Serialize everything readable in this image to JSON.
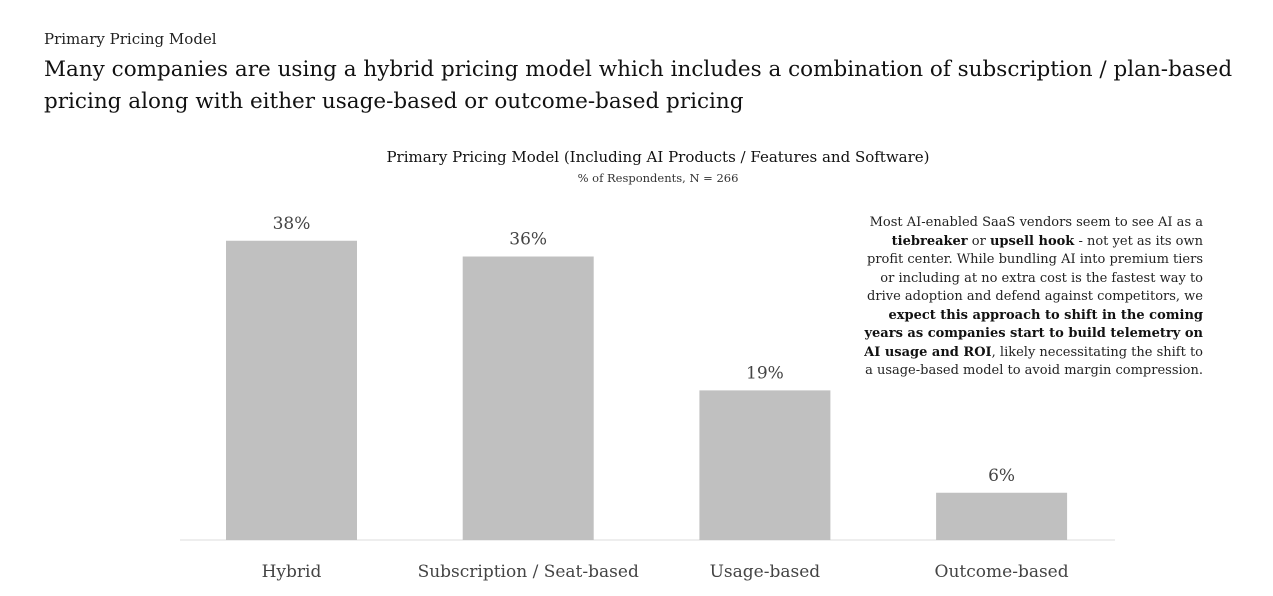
{
  "header": {
    "eyebrow": "Primary Pricing Model",
    "headline": "Many companies are using a hybrid pricing model which includes a combination of subscription / plan-based pricing along with either usage-based or outcome-based pricing"
  },
  "annotation": {
    "segments": [
      {
        "text": "Most AI-enabled SaaS vendors seem to see AI as a ",
        "bold": false
      },
      {
        "text": "tiebreaker",
        "bold": true
      },
      {
        "text": " or ",
        "bold": false
      },
      {
        "text": "upsell hook",
        "bold": true
      },
      {
        "text": " - not yet as its own profit center. While bundling AI into premium tiers or including at no extra cost is the fastest way to drive adoption and defend against competitors, we ",
        "bold": false
      },
      {
        "text": "expect this approach to shift in the coming years as companies start to build telemetry on AI usage and ROI",
        "bold": true
      },
      {
        "text": ", likely necessitating the shift to a usage-based model to avoid margin compression.",
        "bold": false
      }
    ]
  },
  "colors": {
    "bar": "#c0c0c0"
  },
  "chart_data": {
    "type": "bar",
    "title": "Primary Pricing Model (Including AI Products / Features and Software)",
    "subtitle": "% of Respondents, N = 266",
    "categories": [
      "Hybrid",
      "Subscription / Seat-based",
      "Usage-based",
      "Outcome-based"
    ],
    "values": [
      38,
      36,
      19,
      6
    ],
    "value_labels": [
      "38%",
      "36%",
      "19%",
      "6%"
    ],
    "ylim": [
      0,
      40
    ],
    "grid": false,
    "legend": "none"
  }
}
